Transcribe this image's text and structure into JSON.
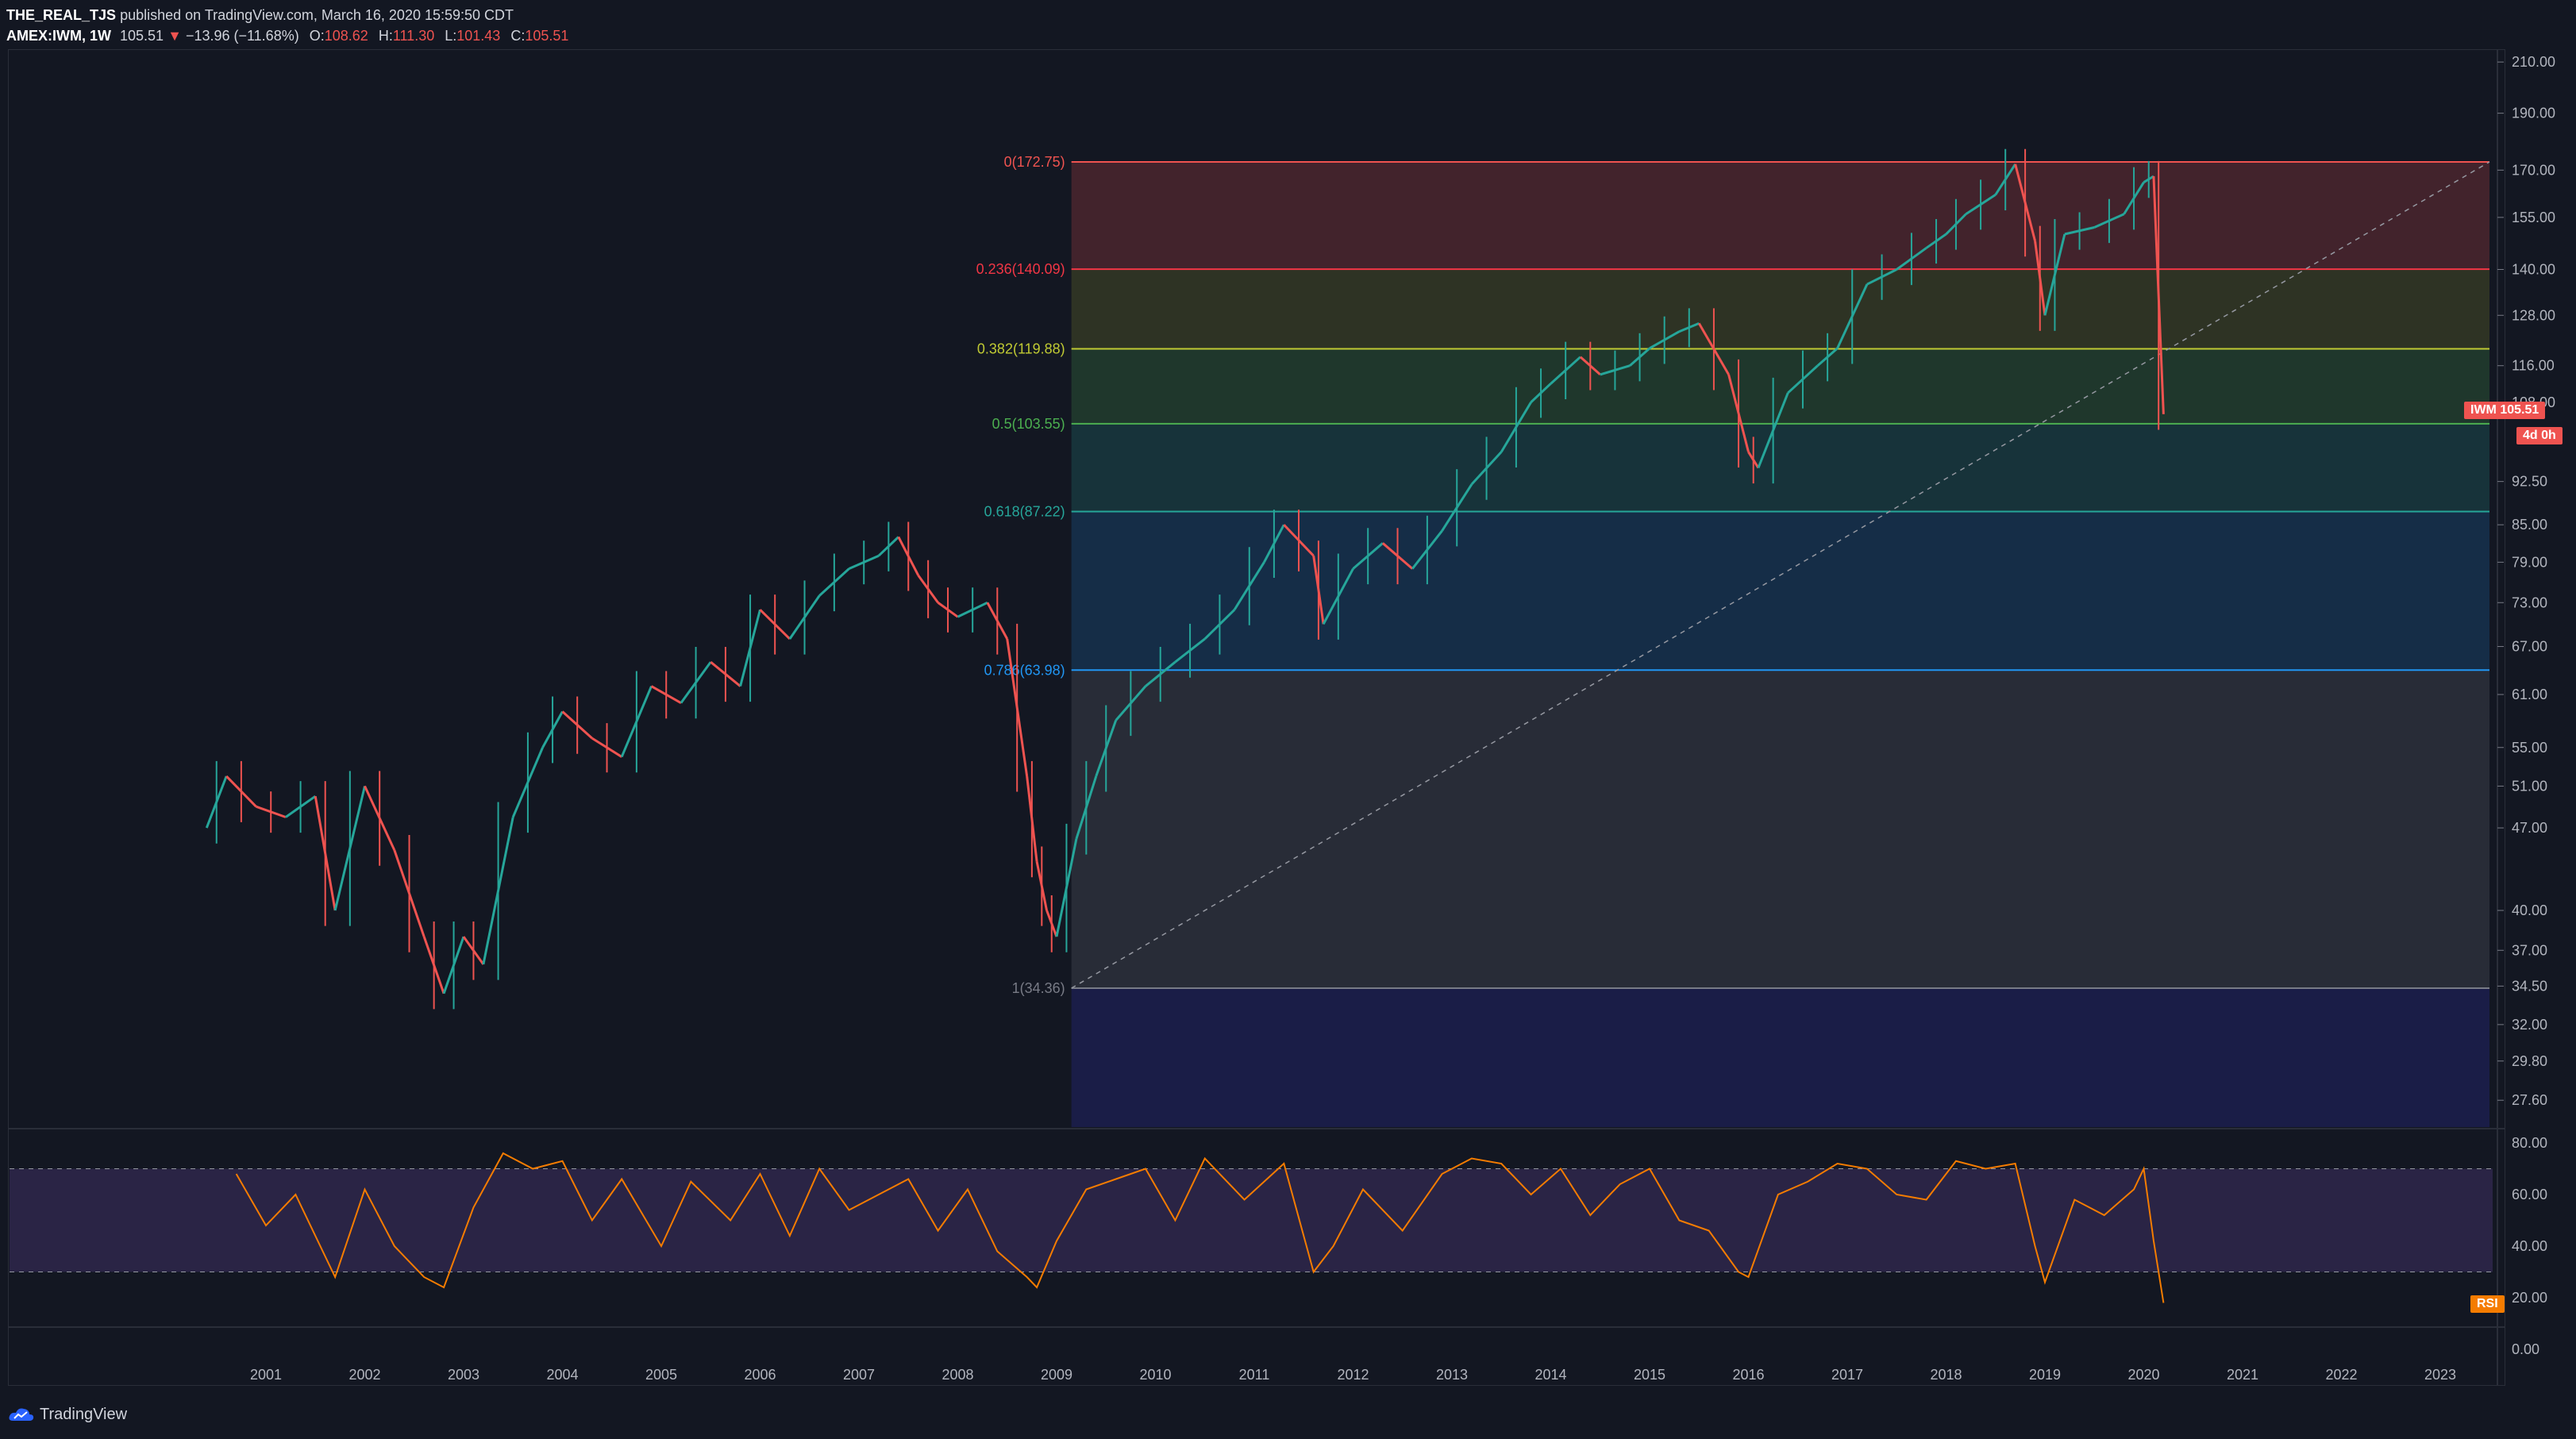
{
  "header": {
    "author": "THE_REAL_TJS",
    "published": "published on TradingView.com, March 16, 2020 15:59:50 CDT",
    "symbol": "AMEX:IWM, 1W",
    "last": "105.51",
    "change": "−13.96 (−11.68%)",
    "o_label": "O:",
    "o": "108.62",
    "h_label": "H:",
    "h": "111.30",
    "l_label": "L:",
    "l": "101.43",
    "c_label": "C:",
    "c": "105.51"
  },
  "price_axis": [
    "210.00",
    "190.00",
    "170.00",
    "155.00",
    "140.00",
    "128.00",
    "116.00",
    "108.00",
    "92.50",
    "85.00",
    "79.00",
    "73.00",
    "67.00",
    "61.00",
    "55.00",
    "51.00",
    "47.00",
    "40.00",
    "37.00",
    "34.50",
    "32.00",
    "29.80",
    "27.60"
  ],
  "rsi_axis": [
    "80.00",
    "60.00",
    "40.00",
    "20.00",
    "0.00"
  ],
  "time_axis": [
    "2001",
    "2002",
    "2003",
    "2004",
    "2005",
    "2006",
    "2007",
    "2008",
    "2009",
    "2010",
    "2011",
    "2012",
    "2013",
    "2014",
    "2015",
    "2016",
    "2017",
    "2018",
    "2019",
    "2020",
    "2021",
    "2022",
    "2023"
  ],
  "fib_levels": [
    {
      "label": "0(172.75)",
      "price": 172.75,
      "color": "#ef5350"
    },
    {
      "label": "0.236(140.09)",
      "price": 140.09,
      "color": "#f23645"
    },
    {
      "label": "0.382(119.88)",
      "price": 119.88,
      "color": "#c0ca33"
    },
    {
      "label": "0.5(103.55)",
      "price": 103.55,
      "color": "#4caf50"
    },
    {
      "label": "0.618(87.22)",
      "price": 87.22,
      "color": "#26a69a"
    },
    {
      "label": "0.786(63.98)",
      "price": 63.98,
      "color": "#2196f3"
    },
    {
      "label": "1(34.36)",
      "price": 34.36,
      "color": "#787b86"
    }
  ],
  "price_tag": {
    "symbol": "IWM",
    "value": "105.51",
    "countdown": "4d 0h",
    "color": "#ef5350"
  },
  "rsi_tag": {
    "label": "RSI",
    "color": "#f57c00"
  },
  "colors": {
    "bg": "#131722",
    "up": "#26a69a",
    "down": "#ef5350",
    "rsi": "#f57c00"
  },
  "footer": {
    "brand": "TradingView"
  },
  "chart_data": {
    "type": "line",
    "series": [
      {
        "name": "IWM",
        "x": [
          2000.4,
          2000.6,
          2000.9,
          2001.2,
          2001.5,
          2001.7,
          2002.0,
          2002.3,
          2002.6,
          2002.8,
          2003.0,
          2003.2,
          2003.5,
          2003.8,
          2004.0,
          2004.3,
          2004.6,
          2004.9,
          2005.2,
          2005.5,
          2005.8,
          2006.0,
          2006.3,
          2006.6,
          2006.9,
          2007.2,
          2007.4,
          2007.6,
          2007.8,
          2008.0,
          2008.3,
          2008.5,
          2008.7,
          2008.8,
          2008.9,
          2009.0,
          2009.2,
          2009.4,
          2009.6,
          2009.9,
          2010.2,
          2010.5,
          2010.8,
          2011.1,
          2011.3,
          2011.6,
          2011.7,
          2012.0,
          2012.3,
          2012.6,
          2012.9,
          2013.2,
          2013.5,
          2013.8,
          2014.0,
          2014.3,
          2014.5,
          2014.8,
          2015.0,
          2015.3,
          2015.5,
          2015.8,
          2016.0,
          2016.1,
          2016.4,
          2016.7,
          2016.9,
          2017.2,
          2017.5,
          2017.8,
          2018.0,
          2018.2,
          2018.5,
          2018.7,
          2018.9,
          2019.0,
          2019.2,
          2019.5,
          2019.8,
          2020.0,
          2020.1,
          2020.2
        ],
        "y": [
          47,
          52,
          49,
          48,
          50,
          40,
          51,
          45,
          38,
          34,
          38,
          36,
          48,
          55,
          59,
          56,
          54,
          62,
          60,
          65,
          62,
          72,
          68,
          74,
          78,
          80,
          83,
          77,
          73,
          71,
          73,
          68,
          52,
          44,
          40,
          38,
          46,
          52,
          58,
          62,
          65,
          68,
          72,
          79,
          85,
          80,
          70,
          78,
          82,
          78,
          84,
          92,
          98,
          108,
          112,
          118,
          114,
          116,
          120,
          124,
          126,
          114,
          98,
          95,
          110,
          116,
          120,
          136,
          140,
          146,
          150,
          156,
          162,
          172,
          148,
          128,
          150,
          152,
          156,
          166,
          168,
          105.51
        ]
      }
    ],
    "rsi": {
      "x": [
        2000.7,
        2001.0,
        2001.3,
        2001.7,
        2002.0,
        2002.3,
        2002.6,
        2002.8,
        2003.1,
        2003.4,
        2003.7,
        2004.0,
        2004.3,
        2004.6,
        2005.0,
        2005.3,
        2005.7,
        2006.0,
        2006.3,
        2006.6,
        2006.9,
        2007.2,
        2007.5,
        2007.8,
        2008.1,
        2008.4,
        2008.7,
        2008.8,
        2009.0,
        2009.3,
        2009.6,
        2009.9,
        2010.2,
        2010.5,
        2010.9,
        2011.3,
        2011.6,
        2011.8,
        2012.1,
        2012.5,
        2012.9,
        2013.2,
        2013.5,
        2013.8,
        2014.1,
        2014.4,
        2014.7,
        2015.0,
        2015.3,
        2015.6,
        2015.9,
        2016.0,
        2016.3,
        2016.6,
        2016.9,
        2017.2,
        2017.5,
        2017.8,
        2018.1,
        2018.4,
        2018.7,
        2018.9,
        2019.0,
        2019.3,
        2019.6,
        2019.9,
        2020.0,
        2020.1,
        2020.2
      ],
      "y": [
        68,
        48,
        60,
        28,
        62,
        40,
        28,
        24,
        55,
        76,
        70,
        73,
        50,
        66,
        40,
        65,
        50,
        68,
        44,
        70,
        54,
        60,
        66,
        46,
        62,
        38,
        28,
        24,
        42,
        62,
        66,
        70,
        50,
        74,
        58,
        72,
        30,
        40,
        62,
        46,
        68,
        74,
        72,
        60,
        70,
        52,
        64,
        70,
        50,
        46,
        30,
        28,
        60,
        65,
        72,
        70,
        60,
        58,
        73,
        70,
        72,
        40,
        26,
        58,
        52,
        62,
        70,
        42,
        18
      ],
      "upper": 70,
      "lower": 30
    }
  }
}
